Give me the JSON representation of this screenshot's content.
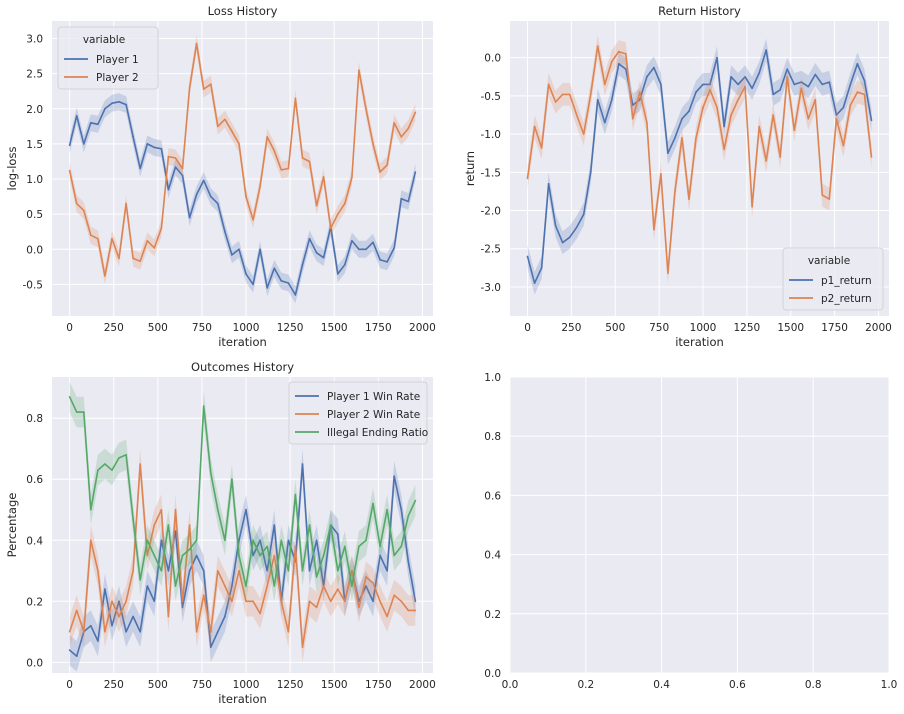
{
  "colors": {
    "blue": "#4c72b0",
    "orange": "#dd8452",
    "green": "#55a868"
  },
  "chart_data": [
    {
      "type": "line",
      "title": "Loss History",
      "xlabel": "iteration",
      "ylabel": "log-loss",
      "xlim": [
        -100,
        2060
      ],
      "ylim": [
        -0.95,
        3.25
      ],
      "xticks": [
        0,
        250,
        500,
        750,
        1000,
        1250,
        1500,
        1750,
        2000
      ],
      "yticks": [
        -0.5,
        0.0,
        0.5,
        1.0,
        1.5,
        2.0,
        2.5,
        3.0
      ],
      "ytick_labels": [
        "-0.5",
        "0.0",
        "0.5",
        "1.0",
        "1.5",
        "2.0",
        "2.5",
        "3.0"
      ],
      "legend": {
        "title": "variable",
        "position": "upper-left"
      },
      "x_start": 0,
      "x_step": 40,
      "series": [
        {
          "name": "Player 1",
          "color": "#4c72b0",
          "band": 0.12,
          "values": [
            1.48,
            1.9,
            1.5,
            1.8,
            1.78,
            2.0,
            2.08,
            2.1,
            2.06,
            1.6,
            1.15,
            1.5,
            1.45,
            1.43,
            0.85,
            1.17,
            1.05,
            0.45,
            0.78,
            0.98,
            0.75,
            0.65,
            0.25,
            -0.08,
            0.0,
            -0.35,
            -0.5,
            0.0,
            -0.55,
            -0.27,
            -0.45,
            -0.48,
            -0.65,
            -0.22,
            0.15,
            -0.05,
            -0.12,
            0.32,
            -0.35,
            -0.22,
            0.12,
            0.0,
            0.0,
            0.1,
            -0.15,
            -0.18,
            0.02,
            0.72,
            0.68,
            1.1
          ]
        },
        {
          "name": "Player 2",
          "color": "#dd8452",
          "band": 0.12,
          "values": [
            1.12,
            0.65,
            0.55,
            0.2,
            0.15,
            -0.38,
            0.15,
            -0.13,
            0.65,
            -0.13,
            -0.17,
            0.12,
            0.02,
            0.3,
            1.32,
            1.3,
            1.15,
            2.3,
            2.93,
            2.28,
            2.35,
            1.75,
            1.85,
            1.68,
            1.5,
            0.75,
            0.42,
            0.9,
            1.6,
            1.4,
            1.13,
            1.15,
            2.15,
            1.3,
            1.25,
            0.62,
            1.03,
            0.3,
            0.5,
            0.65,
            1.02,
            2.55,
            2.0,
            1.5,
            1.1,
            1.2,
            1.8,
            1.6,
            1.72,
            1.95
          ]
        }
      ]
    },
    {
      "type": "line",
      "title": "Return History",
      "xlabel": "iteration",
      "ylabel": "return",
      "xlim": [
        -100,
        2060
      ],
      "ylim": [
        -3.38,
        0.48
      ],
      "xticks": [
        0,
        250,
        500,
        750,
        1000,
        1250,
        1500,
        1750,
        2000
      ],
      "yticks": [
        -3.0,
        -2.5,
        -2.0,
        -1.5,
        -1.0,
        -0.5,
        0.0
      ],
      "ytick_labels": [
        "-3.0",
        "-2.5",
        "-2.0",
        "-1.5",
        "-1.0",
        "-0.5",
        "0.0"
      ],
      "legend": {
        "title": "variable",
        "position": "lower-right"
      },
      "x_start": 0,
      "x_step": 40,
      "series": [
        {
          "name": "p1_return",
          "color": "#4c72b0",
          "band": 0.15,
          "values": [
            -2.6,
            -2.95,
            -2.75,
            -1.65,
            -2.2,
            -2.42,
            -2.35,
            -2.22,
            -2.05,
            -1.5,
            -0.55,
            -0.85,
            -0.55,
            -0.08,
            -0.15,
            -0.62,
            -0.55,
            -0.25,
            -0.13,
            -0.35,
            -1.25,
            -1.05,
            -0.8,
            -0.7,
            -0.45,
            -0.35,
            -0.35,
            0.0,
            -0.9,
            -0.25,
            -0.35,
            -0.25,
            -0.4,
            -0.2,
            0.1,
            -0.48,
            -0.42,
            -0.15,
            -0.35,
            -0.32,
            -0.38,
            -0.22,
            -0.35,
            -0.32,
            -0.75,
            -0.65,
            -0.35,
            -0.08,
            -0.3,
            -0.82
          ]
        },
        {
          "name": "p2_return",
          "color": "#dd8452",
          "band": 0.15,
          "values": [
            -1.58,
            -0.9,
            -1.18,
            -0.35,
            -0.58,
            -0.48,
            -0.48,
            -0.75,
            -1.0,
            -0.48,
            0.15,
            -0.35,
            -0.05,
            0.08,
            0.05,
            -0.8,
            -0.45,
            -0.85,
            -2.25,
            -1.52,
            -2.82,
            -1.75,
            -1.05,
            -1.85,
            -1.05,
            -0.65,
            -0.42,
            -0.65,
            -1.2,
            -0.75,
            -0.55,
            -0.38,
            -1.95,
            -0.9,
            -1.35,
            -0.75,
            -1.3,
            -0.25,
            -0.95,
            -0.4,
            -0.8,
            -0.55,
            -1.8,
            -1.85,
            -0.8,
            -1.15,
            -0.62,
            -0.45,
            -0.48,
            -1.3
          ]
        }
      ]
    },
    {
      "type": "line",
      "title": "Outcomes History",
      "xlabel": "iteration",
      "ylabel": "Percentage",
      "xlim": [
        -100,
        2060
      ],
      "ylim": [
        -0.035,
        0.935
      ],
      "xticks": [
        0,
        250,
        500,
        750,
        1000,
        1250,
        1500,
        1750,
        2000
      ],
      "yticks": [
        0.0,
        0.2,
        0.4,
        0.6,
        0.8
      ],
      "ytick_labels": [
        "0.0",
        "0.2",
        "0.4",
        "0.6",
        "0.8"
      ],
      "legend": {
        "title": "",
        "position": "upper-right"
      },
      "x_start": 0,
      "x_step": 40,
      "series": [
        {
          "name": "Player 1 Win Rate",
          "color": "#4c72b0",
          "band": 0.05,
          "values": [
            0.04,
            0.02,
            0.1,
            0.12,
            0.07,
            0.24,
            0.12,
            0.2,
            0.1,
            0.15,
            0.1,
            0.25,
            0.2,
            0.4,
            0.3,
            0.43,
            0.18,
            0.3,
            0.35,
            0.3,
            0.05,
            0.1,
            0.15,
            0.25,
            0.4,
            0.5,
            0.35,
            0.4,
            0.3,
            0.45,
            0.2,
            0.4,
            0.33,
            0.65,
            0.3,
            0.4,
            0.25,
            0.45,
            0.42,
            0.2,
            0.3,
            0.2,
            0.25,
            0.2,
            0.35,
            0.3,
            0.61,
            0.5,
            0.33,
            0.2
          ]
        },
        {
          "name": "Player 2 Win Rate",
          "color": "#dd8452",
          "band": 0.05,
          "values": [
            0.1,
            0.17,
            0.1,
            0.4,
            0.3,
            0.1,
            0.2,
            0.15,
            0.2,
            0.3,
            0.65,
            0.35,
            0.45,
            0.5,
            0.15,
            0.5,
            0.2,
            0.45,
            0.1,
            0.22,
            0.1,
            0.3,
            0.25,
            0.2,
            0.3,
            0.2,
            0.2,
            0.16,
            0.25,
            0.35,
            0.2,
            0.1,
            0.38,
            0.05,
            0.2,
            0.18,
            0.25,
            0.2,
            0.24,
            0.2,
            0.3,
            0.18,
            0.28,
            0.26,
            0.2,
            0.15,
            0.22,
            0.2,
            0.17,
            0.17
          ]
        },
        {
          "name": "Illegal Ending Ratio",
          "color": "#55a868",
          "band": 0.05,
          "values": [
            0.87,
            0.82,
            0.82,
            0.5,
            0.63,
            0.65,
            0.63,
            0.67,
            0.68,
            0.47,
            0.27,
            0.4,
            0.35,
            0.3,
            0.45,
            0.25,
            0.35,
            0.37,
            0.4,
            0.84,
            0.62,
            0.5,
            0.4,
            0.6,
            0.35,
            0.25,
            0.4,
            0.35,
            0.38,
            0.25,
            0.4,
            0.3,
            0.55,
            0.3,
            0.45,
            0.28,
            0.35,
            0.45,
            0.3,
            0.38,
            0.25,
            0.38,
            0.4,
            0.52,
            0.38,
            0.5,
            0.35,
            0.38,
            0.48,
            0.53
          ]
        }
      ]
    },
    {
      "type": "line",
      "title": "",
      "xlabel": "",
      "ylabel": "",
      "xlim": [
        0.0,
        1.0
      ],
      "ylim": [
        0.0,
        1.0
      ],
      "xticks": [
        0.0,
        0.2,
        0.4,
        0.6,
        0.8,
        1.0
      ],
      "xtick_labels": [
        "0.0",
        "0.2",
        "0.4",
        "0.6",
        "0.8",
        "1.0"
      ],
      "yticks": [
        0.0,
        0.2,
        0.4,
        0.6,
        0.8,
        1.0
      ],
      "ytick_labels": [
        "0.0",
        "0.2",
        "0.4",
        "0.6",
        "0.8",
        "1.0"
      ],
      "legend": null,
      "series": []
    }
  ]
}
